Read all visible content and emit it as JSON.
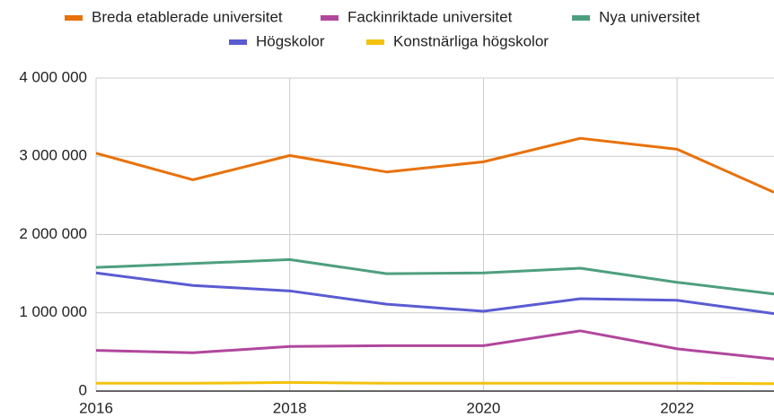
{
  "chart_data": {
    "type": "line",
    "x": [
      2016,
      2017,
      2018,
      2019,
      2020,
      2021,
      2022,
      2023
    ],
    "series": [
      {
        "name": "Breda etablerade universitet",
        "color": "#e8710a",
        "values": [
          3040000,
          2700000,
          3010000,
          2800000,
          2930000,
          3230000,
          3090000,
          2540000
        ]
      },
      {
        "name": "Fackinriktade universitet",
        "color": "#b0479c",
        "values": [
          520000,
          490000,
          570000,
          580000,
          580000,
          770000,
          540000,
          410000
        ]
      },
      {
        "name": "Nya universitet",
        "color": "#4e9f7f",
        "values": [
          1580000,
          1630000,
          1680000,
          1500000,
          1510000,
          1570000,
          1390000,
          1240000
        ]
      },
      {
        "name": "Högskolor",
        "color": "#5a5bd2",
        "values": [
          1510000,
          1350000,
          1280000,
          1110000,
          1020000,
          1180000,
          1160000,
          990000
        ]
      },
      {
        "name": "Konstnärliga högskolor",
        "color": "#f4c20d",
        "values": [
          100000,
          100000,
          110000,
          100000,
          100000,
          100000,
          100000,
          95000
        ]
      }
    ],
    "xlim": [
      2016,
      2023
    ],
    "xticks": [
      2016,
      2018,
      2020,
      2022
    ],
    "ylim": [
      0,
      4000000
    ],
    "yticks": [
      {
        "value": 0,
        "label": "0"
      },
      {
        "value": 1000000,
        "label": "1 000 000"
      },
      {
        "value": 2000000,
        "label": "2 000 000"
      },
      {
        "value": 3000000,
        "label": "3 000 000"
      },
      {
        "value": 4000000,
        "label": "4 000 000"
      }
    ],
    "grid": true,
    "legend": "top"
  }
}
